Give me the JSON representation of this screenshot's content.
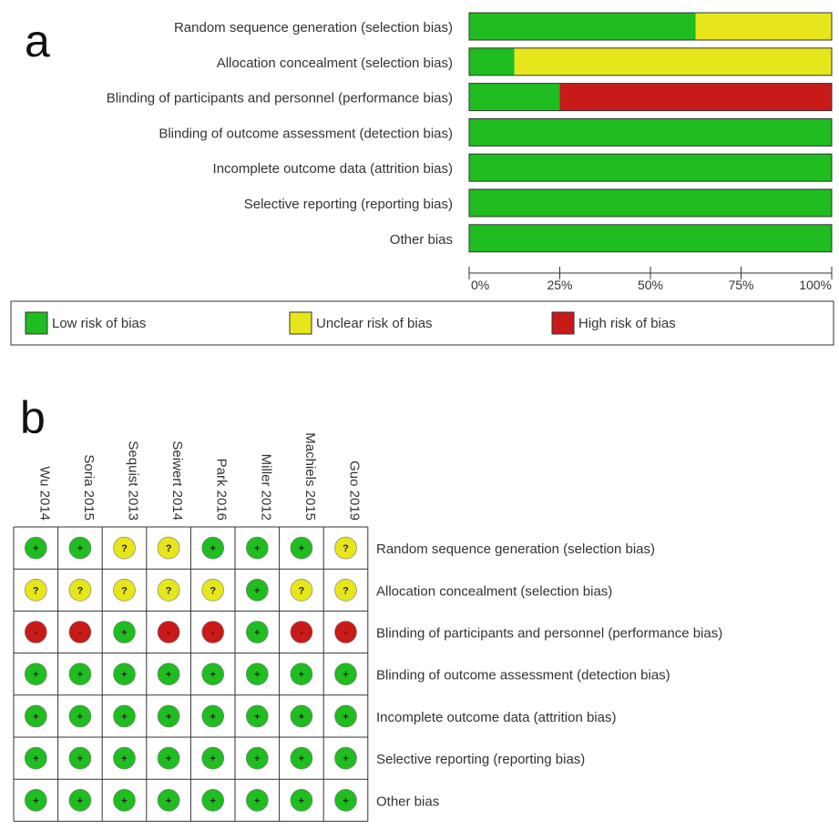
{
  "colors": {
    "low": "#1fbd1f",
    "unclear": "#e6e61a",
    "high": "#c91a1a"
  },
  "chart_data": [
    {
      "type": "bar",
      "panel_label": "a",
      "orientation": "horizontal-stacked-percent",
      "categories": [
        "Random sequence generation (selection bias)",
        "Allocation concealment (selection bias)",
        "Blinding of participants and personnel (performance bias)",
        "Blinding of outcome assessment (detection bias)",
        "Incomplete outcome data (attrition bias)",
        "Selective reporting (reporting bias)",
        "Other bias"
      ],
      "series": [
        {
          "name": "Low risk of bias",
          "color_key": "low",
          "values": [
            62.5,
            12.5,
            25,
            100,
            100,
            100,
            100
          ]
        },
        {
          "name": "Unclear risk of bias",
          "color_key": "unclear",
          "values": [
            37.5,
            87.5,
            0,
            0,
            0,
            0,
            0
          ]
        },
        {
          "name": "High risk of bias",
          "color_key": "high",
          "values": [
            0,
            0,
            75,
            0,
            0,
            0,
            0
          ]
        }
      ],
      "xlim": [
        0,
        100
      ],
      "ticks": [
        "0%",
        "25%",
        "50%",
        "75%",
        "100%"
      ],
      "legend_position": "bottom"
    },
    {
      "type": "table",
      "panel_label": "b",
      "studies": [
        "Wu 2014",
        "Soria 2015",
        "Sequist 2013",
        "Seiwert 2014",
        "Park 2016",
        "Miller 2012",
        "Machiels 2015",
        "Guo 2019"
      ],
      "domains": [
        "Random sequence generation (selection bias)",
        "Allocation concealment (selection bias)",
        "Blinding of participants and personnel (performance bias)",
        "Blinding of outcome assessment (detection bias)",
        "Incomplete outcome data (attrition bias)",
        "Selective reporting (reporting bias)",
        "Other bias"
      ],
      "judgements": [
        [
          "low",
          "low",
          "unclear",
          "unclear",
          "low",
          "low",
          "low",
          "unclear"
        ],
        [
          "unclear",
          "unclear",
          "unclear",
          "unclear",
          "unclear",
          "low",
          "unclear",
          "unclear"
        ],
        [
          "high",
          "high",
          "low",
          "high",
          "high",
          "low",
          "high",
          "high"
        ],
        [
          "low",
          "low",
          "low",
          "low",
          "low",
          "low",
          "low",
          "low"
        ],
        [
          "low",
          "low",
          "low",
          "low",
          "low",
          "low",
          "low",
          "low"
        ],
        [
          "low",
          "low",
          "low",
          "low",
          "low",
          "low",
          "low",
          "low"
        ],
        [
          "low",
          "low",
          "low",
          "low",
          "low",
          "low",
          "low",
          "low"
        ]
      ],
      "symbols": {
        "low": "+",
        "unclear": "?",
        "high": "-"
      }
    }
  ]
}
